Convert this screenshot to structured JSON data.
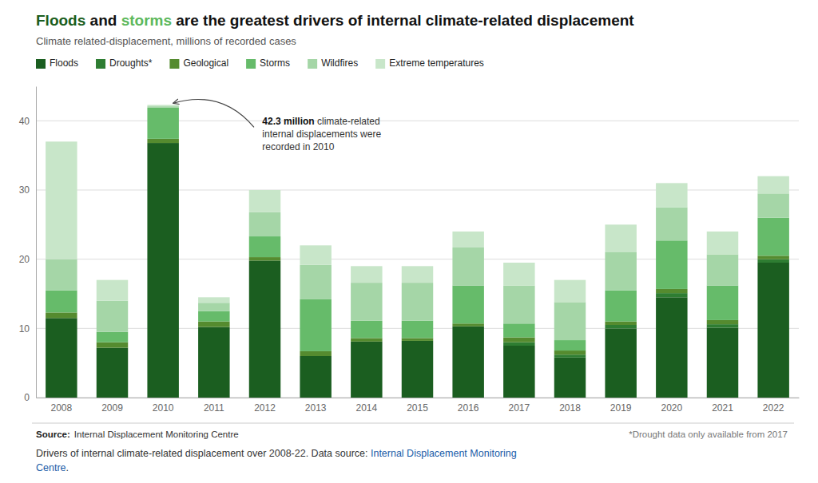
{
  "chart_data": {
    "type": "bar",
    "stacked": true,
    "title": [
      {
        "text": "Floods",
        "color": "#1b5e20"
      },
      {
        "text": " and ",
        "color": "#111111"
      },
      {
        "text": "storms",
        "color": "#5cb85c"
      },
      {
        "text": " are the greatest drivers of internal climate-related displacement",
        "color": "#111111"
      }
    ],
    "subtitle": "Climate related-displacement, millions of recorded cases",
    "categories": [
      "2008",
      "2009",
      "2010",
      "2011",
      "2012",
      "2013",
      "2014",
      "2015",
      "2016",
      "2017",
      "2018",
      "2019",
      "2020",
      "2021",
      "2022"
    ],
    "series": [
      {
        "name": "Floods",
        "color": "#1b5e20",
        "values": [
          11.5,
          7.2,
          36.8,
          10.2,
          19.8,
          6.0,
          8.1,
          8.2,
          10.3,
          7.5,
          5.8,
          10.0,
          14.5,
          10.1,
          19.5
        ]
      },
      {
        "name": "Droughts*",
        "color": "#2e7d32",
        "values": [
          0.0,
          0.0,
          0.0,
          0.0,
          0.0,
          0.0,
          0.0,
          0.0,
          0.0,
          0.5,
          0.4,
          0.5,
          0.6,
          0.5,
          0.5
        ]
      },
      {
        "name": "Geological",
        "color": "#558b2f",
        "values": [
          0.8,
          0.8,
          0.6,
          0.8,
          0.5,
          0.7,
          0.5,
          0.4,
          0.4,
          0.7,
          0.6,
          0.5,
          0.6,
          0.6,
          0.5
        ]
      },
      {
        "name": "Storms",
        "color": "#66bb6a",
        "values": [
          3.2,
          1.5,
          4.5,
          1.5,
          3.0,
          7.5,
          2.5,
          2.5,
          5.5,
          2.0,
          1.5,
          4.5,
          7.0,
          5.0,
          5.5
        ]
      },
      {
        "name": "Wildfires",
        "color": "#a5d6a7",
        "values": [
          4.5,
          4.5,
          0.2,
          1.2,
          3.5,
          5.0,
          5.5,
          5.5,
          5.5,
          5.5,
          5.5,
          5.5,
          4.8,
          4.5,
          3.5
        ]
      },
      {
        "name": "Extreme temperatures",
        "color": "#c8e6c9",
        "values": [
          17.0,
          3.0,
          0.2,
          0.8,
          3.2,
          2.8,
          2.4,
          2.4,
          2.3,
          3.3,
          3.2,
          4.0,
          3.5,
          3.3,
          2.5
        ]
      }
    ],
    "ylim": [
      0,
      45
    ],
    "yticks": [
      0,
      10,
      20,
      30,
      40
    ],
    "grid": true,
    "legend": "top-left",
    "annotations": [
      {
        "at": "2010",
        "lines": [
          [
            {
              "text": "42.3 million"
            },
            {
              "text": " climate-related"
            }
          ],
          [
            {
              "text": "internal displacements were"
            }
          ],
          [
            {
              "text": "recorded in 2010"
            }
          ]
        ]
      }
    ],
    "source_label": "Source:",
    "source_text": "Internal Displacement Monitoring Centre",
    "footnote": "*Drought data only available from 2017",
    "footer": [
      [
        {
          "text": "Drivers of internal climate-related displacement over 2008-22. Data source: ",
          "color": "#333333"
        },
        {
          "text": "Internal Displacement Monitoring",
          "color": "#1a5ca8"
        }
      ],
      [
        {
          "text": "Centre",
          "color": "#1a5ca8"
        },
        {
          "text": ".",
          "color": "#333333"
        }
      ]
    ]
  }
}
